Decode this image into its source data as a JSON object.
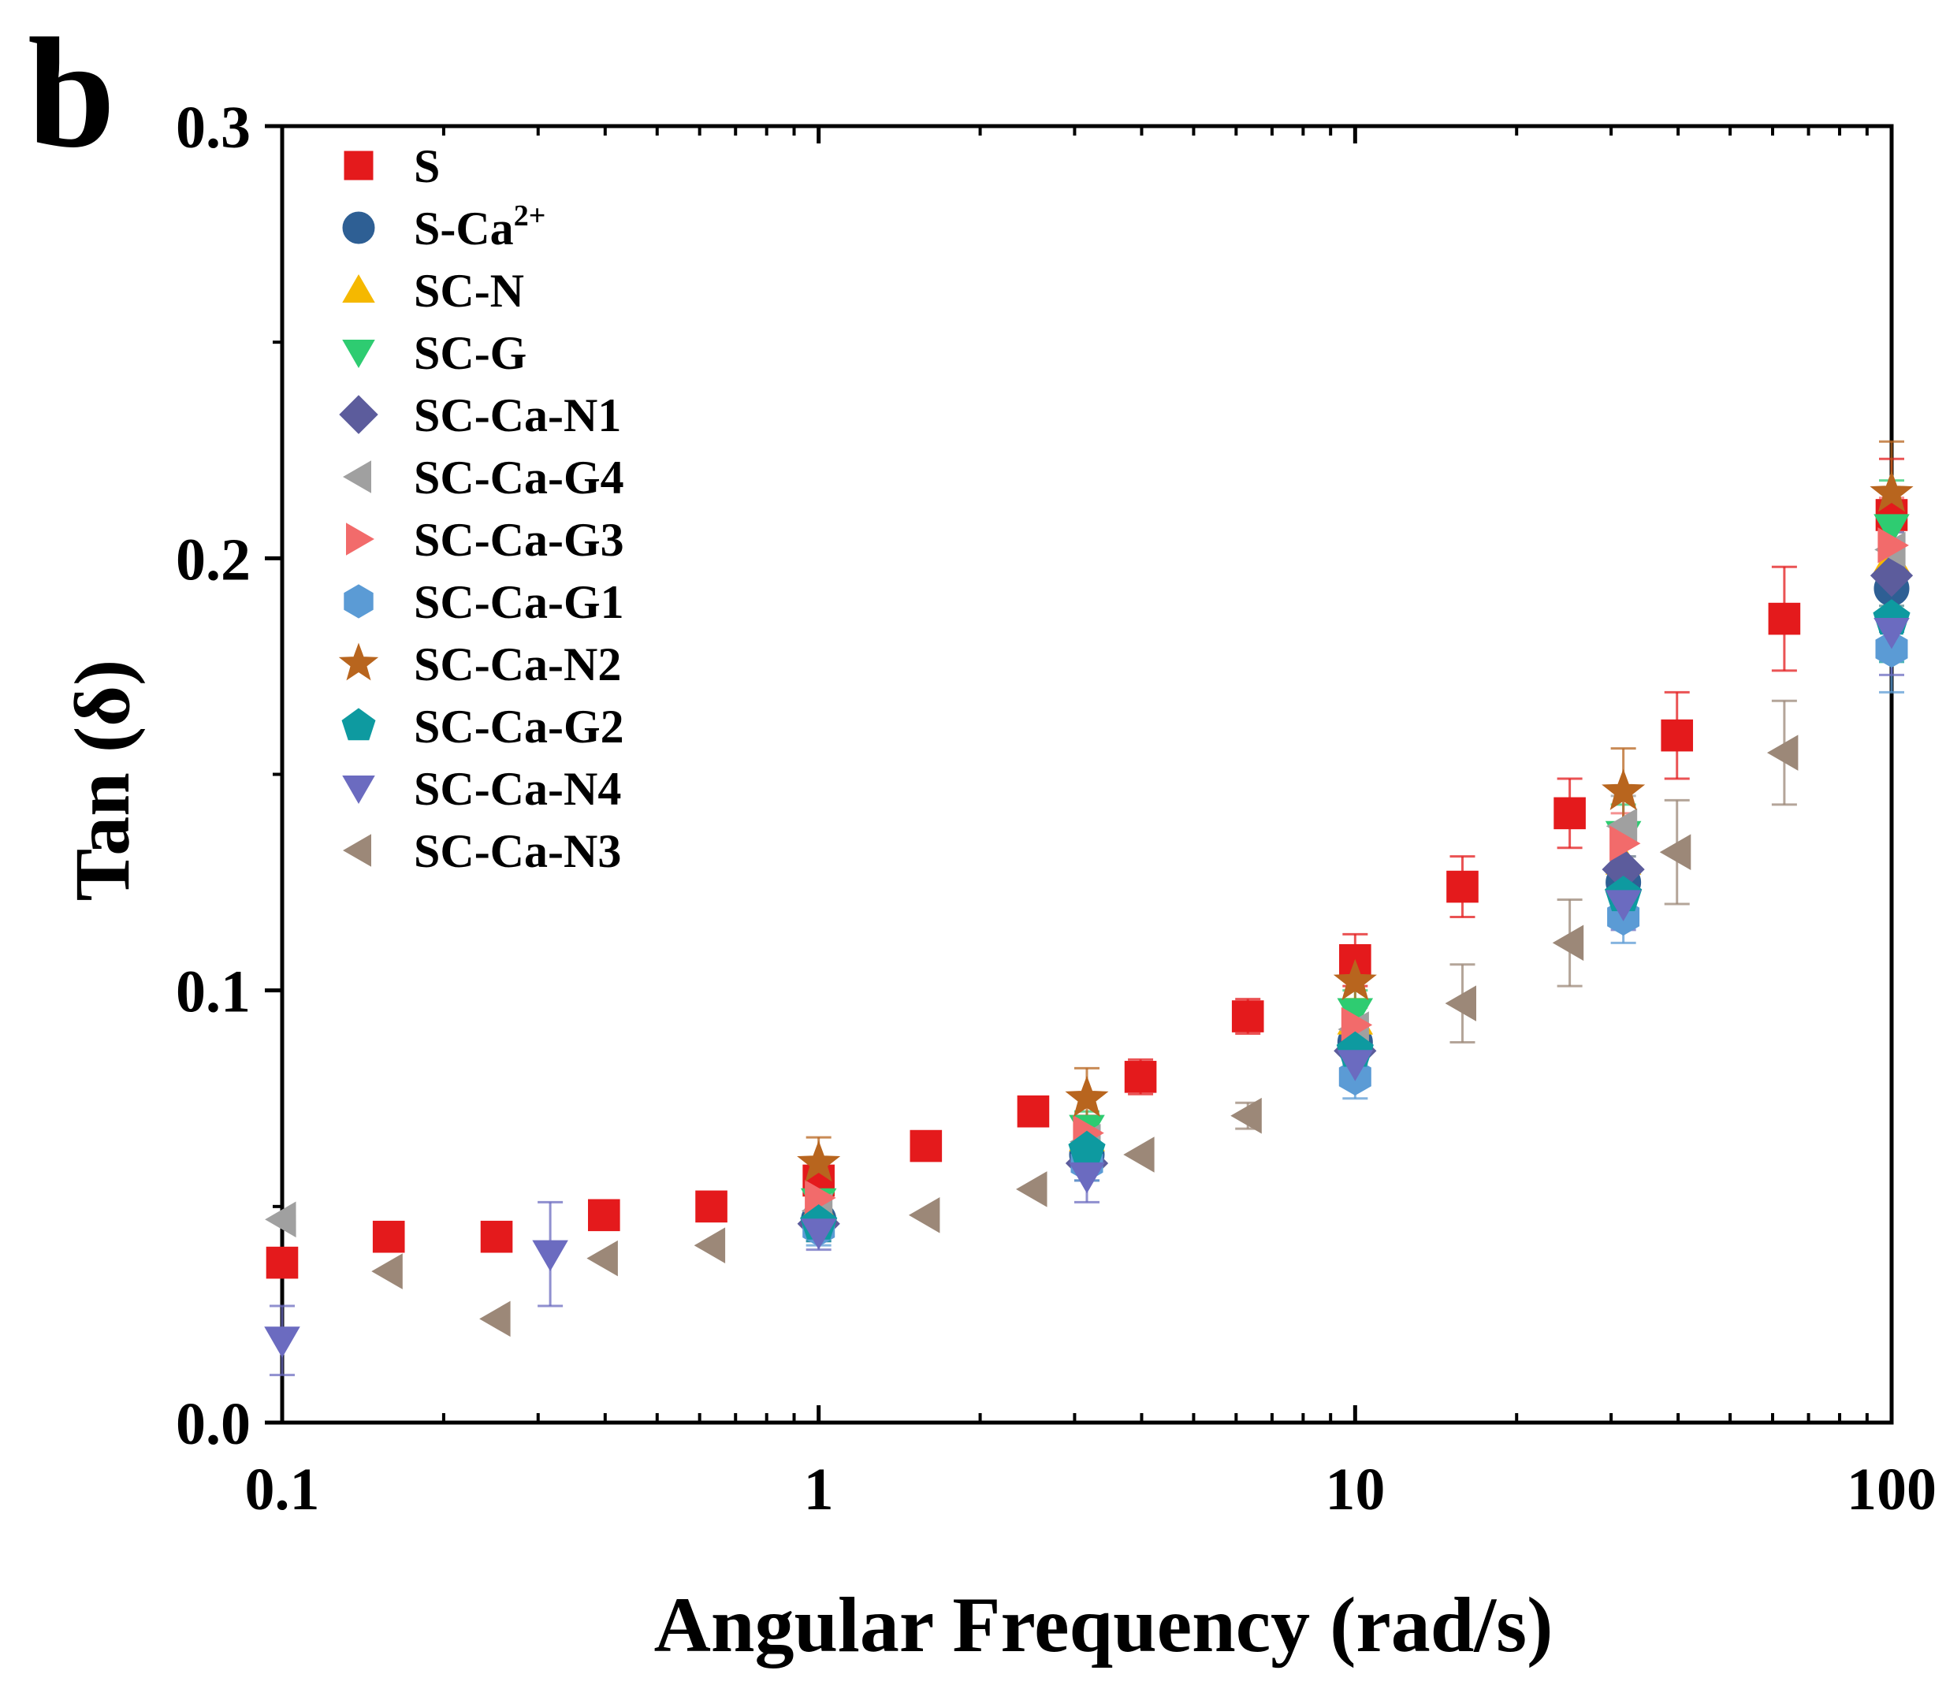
{
  "panel_label": "b",
  "chart_data": {
    "type": "scatter",
    "title": "",
    "xlabel": "Angular Frequency (rad/s)",
    "ylabel": "Tan (δ)",
    "xscale": "log",
    "xlim": [
      0.1,
      100
    ],
    "ylim": [
      0.0,
      0.3
    ],
    "x_ticks": [
      0.1,
      1,
      10,
      100
    ],
    "x_tick_labels": [
      "0.1",
      "1",
      "10",
      "100"
    ],
    "y_ticks": [
      0.0,
      0.1,
      0.2,
      0.3
    ],
    "y_tick_labels": [
      "0.0",
      "0.1",
      "0.2",
      "0.3"
    ],
    "grid": false,
    "legend_position": "top-left",
    "series": [
      {
        "name": "S",
        "label_main": "S",
        "label_sup": "",
        "marker": "square",
        "color": "#e41a1c",
        "points": [
          {
            "x": 0.1,
            "y": 0.037,
            "err": 0.0
          },
          {
            "x": 0.158,
            "y": 0.043,
            "err": 0.0
          },
          {
            "x": 0.251,
            "y": 0.043,
            "err": 0.0
          },
          {
            "x": 0.398,
            "y": 0.048,
            "err": 0.0
          },
          {
            "x": 0.631,
            "y": 0.05,
            "err": 0.0
          },
          {
            "x": 1.0,
            "y": 0.056,
            "err": 0.005
          },
          {
            "x": 1.585,
            "y": 0.064,
            "err": 0.0
          },
          {
            "x": 2.512,
            "y": 0.072,
            "err": 0.003
          },
          {
            "x": 3.981,
            "y": 0.08,
            "err": 0.004
          },
          {
            "x": 6.31,
            "y": 0.094,
            "err": 0.004
          },
          {
            "x": 10.0,
            "y": 0.107,
            "err": 0.006
          },
          {
            "x": 15.85,
            "y": 0.124,
            "err": 0.007
          },
          {
            "x": 25.12,
            "y": 0.141,
            "err": 0.008
          },
          {
            "x": 39.81,
            "y": 0.159,
            "err": 0.01
          },
          {
            "x": 63.1,
            "y": 0.186,
            "err": 0.012
          },
          {
            "x": 100.0,
            "y": 0.21,
            "err": 0.013
          }
        ]
      },
      {
        "name": "S-Ca2+",
        "label_main": "S-Ca",
        "label_sup": "2+",
        "marker": "circle",
        "color": "#2e5f94",
        "points": [
          {
            "x": 1.0,
            "y": 0.047,
            "err": 0.004
          },
          {
            "x": 3.162,
            "y": 0.062,
            "err": 0.004
          },
          {
            "x": 10.0,
            "y": 0.088,
            "err": 0.005
          },
          {
            "x": 31.62,
            "y": 0.125,
            "err": 0.006
          },
          {
            "x": 100.0,
            "y": 0.193,
            "err": 0.01
          }
        ]
      },
      {
        "name": "SC-N",
        "label_main": "SC-N",
        "label_sup": "",
        "marker": "triangle-up",
        "color": "#f5b800",
        "points": [
          {
            "x": 1.0,
            "y": 0.05,
            "err": 0.004
          },
          {
            "x": 3.162,
            "y": 0.066,
            "err": 0.004
          },
          {
            "x": 10.0,
            "y": 0.093,
            "err": 0.005
          },
          {
            "x": 31.62,
            "y": 0.13,
            "err": 0.007
          },
          {
            "x": 100.0,
            "y": 0.2,
            "err": 0.011
          }
        ]
      },
      {
        "name": "SC-G",
        "label_main": "SC-G",
        "label_sup": "",
        "marker": "triangle-down",
        "color": "#2ecc71",
        "points": [
          {
            "x": 1.0,
            "y": 0.051,
            "err": 0.004
          },
          {
            "x": 3.162,
            "y": 0.068,
            "err": 0.004
          },
          {
            "x": 10.0,
            "y": 0.095,
            "err": 0.005
          },
          {
            "x": 31.62,
            "y": 0.136,
            "err": 0.007
          },
          {
            "x": 100.0,
            "y": 0.207,
            "err": 0.011
          }
        ]
      },
      {
        "name": "SC-Ca-N1",
        "label_main": "SC-Ca-N1",
        "label_sup": "",
        "marker": "diamond",
        "color": "#5c5c9c",
        "points": [
          {
            "x": 1.0,
            "y": 0.046,
            "err": 0.004
          },
          {
            "x": 3.162,
            "y": 0.06,
            "err": 0.004
          },
          {
            "x": 10.0,
            "y": 0.086,
            "err": 0.005
          },
          {
            "x": 31.62,
            "y": 0.128,
            "err": 0.007
          },
          {
            "x": 100.0,
            "y": 0.196,
            "err": 0.01
          }
        ]
      },
      {
        "name": "SC-Ca-G4",
        "label_main": "SC-Ca-G4",
        "label_sup": "",
        "marker": "triangle-left",
        "color": "#a0a0a0",
        "points": [
          {
            "x": 0.1,
            "y": 0.047,
            "err": 0.0
          },
          {
            "x": 1.0,
            "y": 0.049,
            "err": 0.004
          },
          {
            "x": 3.162,
            "y": 0.065,
            "err": 0.004
          },
          {
            "x": 10.0,
            "y": 0.091,
            "err": 0.005
          },
          {
            "x": 31.62,
            "y": 0.138,
            "err": 0.007
          },
          {
            "x": 100.0,
            "y": 0.202,
            "err": 0.011
          }
        ]
      },
      {
        "name": "SC-Ca-G3",
        "label_main": "SC-Ca-G3",
        "label_sup": "",
        "marker": "triangle-right",
        "color": "#f26b6b",
        "points": [
          {
            "x": 1.0,
            "y": 0.052,
            "err": 0.004
          },
          {
            "x": 3.162,
            "y": 0.067,
            "err": 0.004
          },
          {
            "x": 10.0,
            "y": 0.092,
            "err": 0.005
          },
          {
            "x": 31.62,
            "y": 0.134,
            "err": 0.007
          },
          {
            "x": 100.0,
            "y": 0.203,
            "err": 0.011
          }
        ]
      },
      {
        "name": "SC-Ca-G1",
        "label_main": "SC-Ca-G1",
        "label_sup": "",
        "marker": "hexagon",
        "color": "#5b9bd5",
        "points": [
          {
            "x": 1.0,
            "y": 0.045,
            "err": 0.004
          },
          {
            "x": 3.162,
            "y": 0.06,
            "err": 0.004
          },
          {
            "x": 10.0,
            "y": 0.08,
            "err": 0.005
          },
          {
            "x": 31.62,
            "y": 0.117,
            "err": 0.006
          },
          {
            "x": 100.0,
            "y": 0.179,
            "err": 0.01
          }
        ]
      },
      {
        "name": "SC-Ca-N2",
        "label_main": "SC-Ca-N2",
        "label_sup": "",
        "marker": "star",
        "color": "#b8651e",
        "points": [
          {
            "x": 1.0,
            "y": 0.06,
            "err": 0.006
          },
          {
            "x": 3.162,
            "y": 0.075,
            "err": 0.007
          },
          {
            "x": 10.0,
            "y": 0.102,
            "err": 0.008
          },
          {
            "x": 31.62,
            "y": 0.146,
            "err": 0.01
          },
          {
            "x": 100.0,
            "y": 0.215,
            "err": 0.012
          }
        ]
      },
      {
        "name": "SC-Ca-G2",
        "label_main": "SC-Ca-G2",
        "label_sup": "",
        "marker": "pentagon",
        "color": "#0e9aa0",
        "points": [
          {
            "x": 1.0,
            "y": 0.046,
            "err": 0.004
          },
          {
            "x": 3.162,
            "y": 0.063,
            "err": 0.004
          },
          {
            "x": 10.0,
            "y": 0.086,
            "err": 0.005
          },
          {
            "x": 31.62,
            "y": 0.122,
            "err": 0.006
          },
          {
            "x": 100.0,
            "y": 0.186,
            "err": 0.01
          }
        ]
      },
      {
        "name": "SC-Ca-N4",
        "label_main": "SC-Ca-N4",
        "label_sup": "",
        "marker": "triangle-down",
        "color": "#6b6bc0",
        "points": [
          {
            "x": 0.1,
            "y": 0.019,
            "err": 0.008
          },
          {
            "x": 0.316,
            "y": 0.039,
            "err": 0.012
          },
          {
            "x": 1.0,
            "y": 0.044,
            "err": 0.004
          },
          {
            "x": 3.162,
            "y": 0.057,
            "err": 0.006
          },
          {
            "x": 10.0,
            "y": 0.083,
            "err": 0.005
          },
          {
            "x": 31.62,
            "y": 0.12,
            "err": 0.006
          },
          {
            "x": 100.0,
            "y": 0.183,
            "err": 0.01
          }
        ]
      },
      {
        "name": "SC-Ca-N3",
        "label_main": "SC-Ca-N3",
        "label_sup": "",
        "marker": "triangle-left",
        "color": "#9c8878",
        "points": [
          {
            "x": 0.158,
            "y": 0.035,
            "err": 0.0
          },
          {
            "x": 0.251,
            "y": 0.024,
            "err": 0.0
          },
          {
            "x": 0.398,
            "y": 0.038,
            "err": 0.0
          },
          {
            "x": 0.631,
            "y": 0.041,
            "err": 0.0
          },
          {
            "x": 1.585,
            "y": 0.048,
            "err": 0.0
          },
          {
            "x": 2.512,
            "y": 0.054,
            "err": 0.0
          },
          {
            "x": 3.981,
            "y": 0.062,
            "err": 0.0
          },
          {
            "x": 6.31,
            "y": 0.071,
            "err": 0.003
          },
          {
            "x": 15.85,
            "y": 0.097,
            "err": 0.009
          },
          {
            "x": 25.12,
            "y": 0.111,
            "err": 0.01
          },
          {
            "x": 39.81,
            "y": 0.132,
            "err": 0.012
          },
          {
            "x": 63.1,
            "y": 0.155,
            "err": 0.012
          }
        ]
      }
    ]
  }
}
